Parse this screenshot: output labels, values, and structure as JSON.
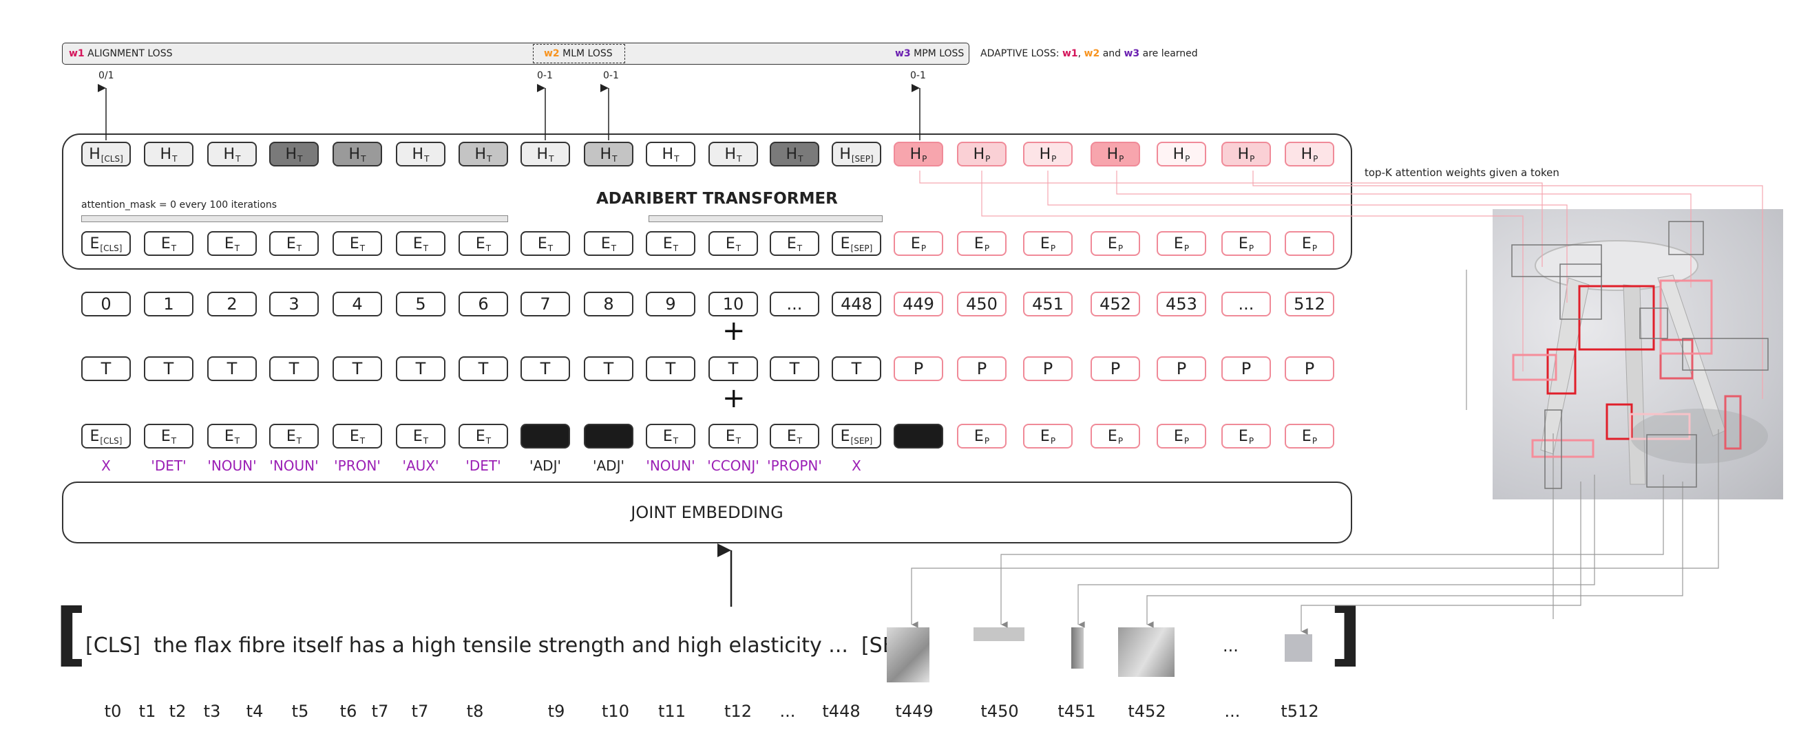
{
  "loss_bar": {
    "w1_label": "w1",
    "alignment_loss": "ALIGNMENT LOSS",
    "w2_label": "w2",
    "mlm_loss": "MLM LOSS",
    "w3_label": "w3",
    "mpm_loss": "MPM LOSS",
    "adaptive_prefix": "ADAPTIVE LOSS:",
    "adaptive_suffix": "are learned",
    "adaptive_and": "and",
    "range_alignment": "0/1",
    "range_mlm_1": "0-1",
    "range_mlm_2": "0-1",
    "range_mpm": "0-1"
  },
  "colors": {
    "w1": "#d4145a",
    "w2": "#f7931e",
    "w3": "#6a1fb0",
    "pos_tag": "#9b1fb5",
    "patch_border": "#f08a98"
  },
  "transformer": {
    "title": "ADARIBERT TRANSFORMER",
    "attention_note": "attention_mask = 0 every 100 iterations",
    "hidden_text": [
      {
        "main": "H",
        "sub": "[CLS]",
        "shade": "#eeeeee"
      },
      {
        "main": "H",
        "sub": "T",
        "shade": "#eeeeee"
      },
      {
        "main": "H",
        "sub": "T",
        "shade": "#eeeeee"
      },
      {
        "main": "H",
        "sub": "T",
        "shade": "#7a7a7a"
      },
      {
        "main": "H",
        "sub": "T",
        "shade": "#9a9a9a"
      },
      {
        "main": "H",
        "sub": "T",
        "shade": "#eeeeee"
      },
      {
        "main": "H",
        "sub": "T",
        "shade": "#c4c4c4"
      },
      {
        "main": "H",
        "sub": "T",
        "shade": "#eeeeee"
      },
      {
        "main": "H",
        "sub": "T",
        "shade": "#c4c4c4"
      },
      {
        "main": "H",
        "sub": "T",
        "shade": "#ffffff"
      },
      {
        "main": "H",
        "sub": "T",
        "shade": "#eeeeee"
      },
      {
        "main": "H",
        "sub": "T",
        "shade": "#7a7a7a"
      },
      {
        "main": "H",
        "sub": "[SEP]",
        "shade": "#eeeeee"
      }
    ],
    "hidden_patch": [
      {
        "main": "H",
        "sub": "P",
        "shade": "#f7a5ad"
      },
      {
        "main": "H",
        "sub": "P",
        "shade": "#fad0d5"
      },
      {
        "main": "H",
        "sub": "P",
        "shade": "#fde4e7"
      },
      {
        "main": "H",
        "sub": "P",
        "shade": "#f7a5ad"
      },
      {
        "main": "H",
        "sub": "P",
        "shade": "#fff4f5"
      },
      {
        "main": "H",
        "sub": "P",
        "shade": "#fad0d5"
      },
      {
        "main": "H",
        "sub": "P",
        "shade": "#fde4e7"
      }
    ],
    "embed_text": [
      {
        "main": "E",
        "sub": "[CLS]"
      },
      {
        "main": "E",
        "sub": "T"
      },
      {
        "main": "E",
        "sub": "T"
      },
      {
        "main": "E",
        "sub": "T"
      },
      {
        "main": "E",
        "sub": "T"
      },
      {
        "main": "E",
        "sub": "T"
      },
      {
        "main": "E",
        "sub": "T"
      },
      {
        "main": "E",
        "sub": "T"
      },
      {
        "main": "E",
        "sub": "T"
      },
      {
        "main": "E",
        "sub": "T"
      },
      {
        "main": "E",
        "sub": "T"
      },
      {
        "main": "E",
        "sub": "T"
      },
      {
        "main": "E",
        "sub": "[SEP]"
      }
    ],
    "embed_patch": [
      {
        "main": "E",
        "sub": "P"
      },
      {
        "main": "E",
        "sub": "P"
      },
      {
        "main": "E",
        "sub": "P"
      },
      {
        "main": "E",
        "sub": "P"
      },
      {
        "main": "E",
        "sub": "P"
      },
      {
        "main": "E",
        "sub": "P"
      },
      {
        "main": "E",
        "sub": "P"
      }
    ]
  },
  "positions": [
    "0",
    "1",
    "2",
    "3",
    "4",
    "5",
    "6",
    "7",
    "8",
    "9",
    "10",
    "...",
    "448",
    "449",
    "450",
    "451",
    "452",
    "453",
    "...",
    "512"
  ],
  "segments": [
    "T",
    "T",
    "T",
    "T",
    "T",
    "T",
    "T",
    "T",
    "T",
    "T",
    "T",
    "T",
    "T",
    "P",
    "P",
    "P",
    "P",
    "P",
    "P",
    "P"
  ],
  "input_embeds": [
    {
      "main": "E",
      "sub": "[CLS]",
      "masked": false
    },
    {
      "main": "E",
      "sub": "T",
      "masked": false
    },
    {
      "main": "E",
      "sub": "T",
      "masked": false
    },
    {
      "main": "E",
      "sub": "T",
      "masked": false
    },
    {
      "main": "E",
      "sub": "T",
      "masked": false
    },
    {
      "main": "E",
      "sub": "T",
      "masked": false
    },
    {
      "main": "E",
      "sub": "T",
      "masked": false
    },
    {
      "main": "",
      "sub": "",
      "masked": true
    },
    {
      "main": "",
      "sub": "",
      "masked": true
    },
    {
      "main": "E",
      "sub": "T",
      "masked": false
    },
    {
      "main": "E",
      "sub": "T",
      "masked": false
    },
    {
      "main": "E",
      "sub": "T",
      "masked": false
    },
    {
      "main": "E",
      "sub": "[SEP]",
      "masked": false
    },
    {
      "main": "",
      "sub": "",
      "masked": true
    },
    {
      "main": "E",
      "sub": "P",
      "masked": false
    },
    {
      "main": "E",
      "sub": "P",
      "masked": false
    },
    {
      "main": "E",
      "sub": "P",
      "masked": false
    },
    {
      "main": "E",
      "sub": "P",
      "masked": false
    },
    {
      "main": "E",
      "sub": "P",
      "masked": false
    },
    {
      "main": "E",
      "sub": "P",
      "masked": false
    }
  ],
  "pos_tags": [
    {
      "text": "X",
      "colored": true
    },
    {
      "text": "'DET'",
      "colored": true
    },
    {
      "text": "'NOUN'",
      "colored": true
    },
    {
      "text": "'NOUN'",
      "colored": true
    },
    {
      "text": "'PRON'",
      "colored": true
    },
    {
      "text": "'AUX'",
      "colored": true
    },
    {
      "text": "'DET'",
      "colored": true
    },
    {
      "text": "'ADJ'",
      "colored": false
    },
    {
      "text": "'ADJ'",
      "colored": false
    },
    {
      "text": "'NOUN'",
      "colored": true
    },
    {
      "text": "'CCONJ'",
      "colored": true
    },
    {
      "text": "'PROPN'",
      "colored": true
    },
    {
      "text": "X",
      "colored": true
    }
  ],
  "joint_embedding": "JOINT EMBEDDING",
  "input_sequence": {
    "open_bracket": "[",
    "close_bracket": "]",
    "sentence": "[CLS]  the flax fibre itself has a high tensile strength and high elasticity ...  [SEP]",
    "patch_ellipsis": "..."
  },
  "token_ids": [
    "t0",
    "t1",
    "t2",
    "t3",
    "t4",
    "t5",
    "t6",
    "t7",
    "t7",
    "t8",
    "t9",
    "t10",
    "t11",
    "t12",
    "...",
    "t448",
    "t449",
    "t450",
    "t451",
    "t452",
    "...",
    "t512"
  ],
  "attention_caption": "top-K attention weights given a token"
}
